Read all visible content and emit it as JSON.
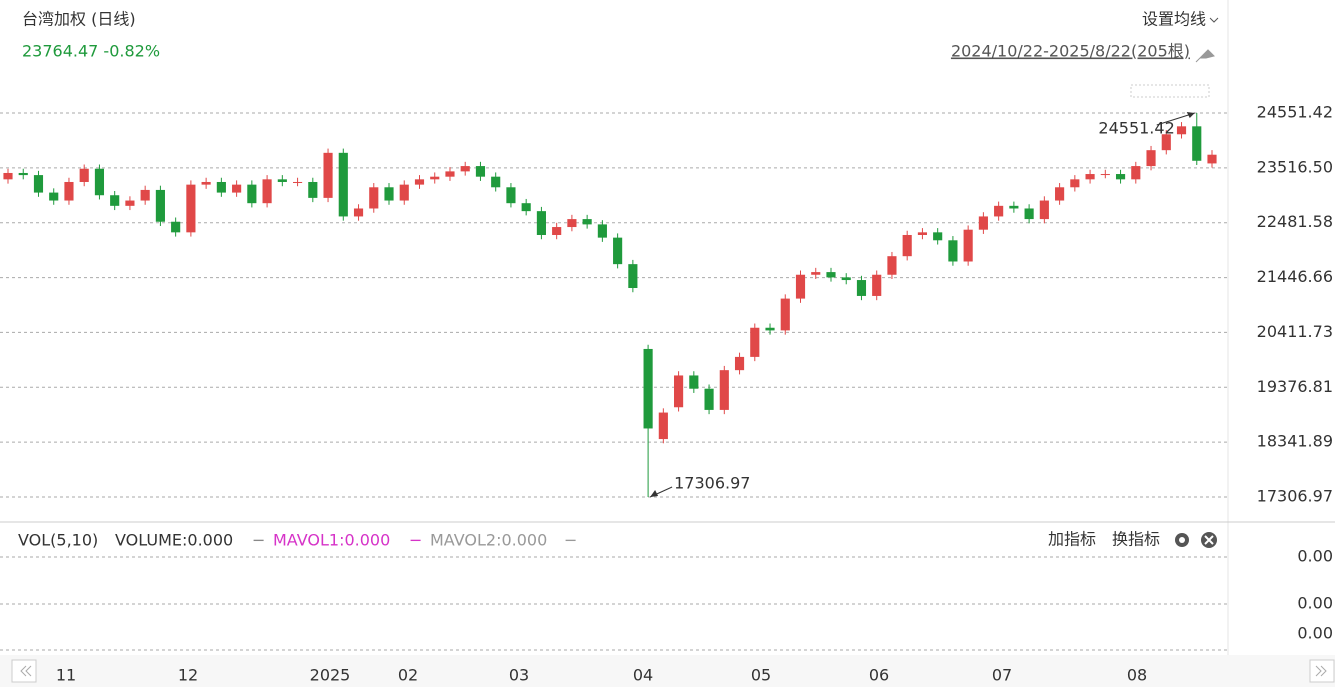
{
  "header": {
    "title": "台湾加权 (日线)",
    "quote": "23764.47 -0.82%",
    "ma_button": "设置均线",
    "range": "2024/10/22-2025/8/22(205根)"
  },
  "chart_data": {
    "type": "candlestick",
    "open": [
      23300,
      23420,
      23380,
      23050,
      22900,
      23250,
      23500,
      23000,
      22800,
      22900,
      23100,
      22500,
      22300,
      23200,
      23250,
      23050,
      23200,
      22850,
      23300,
      23250,
      23250,
      22950,
      23800,
      22600,
      22750,
      23150,
      22900,
      23200,
      23300,
      23350,
      23450,
      23550,
      23350,
      23150,
      22850,
      22700,
      22250,
      22400,
      22550,
      22450,
      22200,
      21700,
      20100,
      18400,
      19000,
      19600,
      19350,
      18950,
      19700,
      19950,
      20500,
      20450,
      21050,
      21500,
      21550,
      21450,
      21400,
      21100,
      21500,
      21850,
      22250,
      22300,
      22150,
      21750,
      22350,
      22600,
      22800,
      22750,
      22550,
      22900,
      23150,
      23300,
      23400,
      23400,
      23300,
      23550,
      23850,
      24150,
      24300,
      23600
    ],
    "high": [
      23500,
      23500,
      23460,
      23130,
      23330,
      23580,
      23580,
      23080,
      22980,
      23180,
      23180,
      22580,
      23280,
      23330,
      23330,
      23280,
      23280,
      23380,
      23380,
      23330,
      23330,
      23880,
      23880,
      22830,
      23230,
      23230,
      23280,
      23380,
      23430,
      23530,
      23630,
      23630,
      23430,
      23230,
      22930,
      22780,
      22480,
      22630,
      22630,
      22530,
      22280,
      21780,
      20180,
      18980,
      19680,
      19680,
      19430,
      19780,
      20030,
      20580,
      20580,
      21130,
      21580,
      21630,
      21630,
      21530,
      21480,
      21580,
      21930,
      22330,
      22380,
      22380,
      22230,
      22430,
      22680,
      22880,
      22880,
      22830,
      22980,
      23230,
      23380,
      23480,
      23480,
      23480,
      23630,
      23930,
      24230,
      24380,
      24551.42,
      23850
    ],
    "low": [
      23220,
      23300,
      22970,
      22820,
      22820,
      23170,
      22920,
      22720,
      22720,
      22820,
      22420,
      22220,
      22220,
      23120,
      22970,
      22970,
      22770,
      22770,
      23170,
      23170,
      22870,
      22870,
      22520,
      22520,
      22670,
      22820,
      22820,
      23120,
      23220,
      23270,
      23370,
      23270,
      23070,
      22770,
      22620,
      22170,
      22170,
      22320,
      22370,
      22120,
      21620,
      21170,
      17306.97,
      18320,
      18920,
      19270,
      18870,
      18870,
      19620,
      19870,
      20370,
      20370,
      20970,
      21420,
      21370,
      21320,
      21020,
      21020,
      21420,
      21770,
      22170,
      22070,
      21670,
      21670,
      22270,
      22520,
      22670,
      22470,
      22470,
      22820,
      23070,
      23220,
      23320,
      23220,
      23220,
      23470,
      23770,
      24070,
      23570,
      23520
    ],
    "close": [
      23420,
      23380,
      23050,
      22900,
      23250,
      23500,
      23000,
      22800,
      22900,
      23100,
      22500,
      22300,
      23200,
      23250,
      23050,
      23200,
      22850,
      23300,
      23250,
      23250,
      22950,
      23800,
      22600,
      22750,
      23150,
      22900,
      23200,
      23300,
      23350,
      23450,
      23550,
      23350,
      23150,
      22850,
      22700,
      22250,
      22400,
      22550,
      22450,
      22200,
      21700,
      21250,
      18600,
      18900,
      19600,
      19350,
      18950,
      19700,
      19950,
      20500,
      20450,
      21050,
      21500,
      21550,
      21450,
      21400,
      21100,
      21500,
      21850,
      22250,
      22300,
      22150,
      21750,
      22350,
      22600,
      22800,
      22750,
      22550,
      22900,
      23150,
      23300,
      23400,
      23400,
      23300,
      23550,
      23850,
      24150,
      24300,
      23650,
      23764.47
    ],
    "up_color": "#e04848",
    "down_color": "#1f9a3c",
    "ylim": [
      17306.97,
      24551.42
    ],
    "yticks": [
      24551.42,
      {
        "value": 23516.5,
        "label": "23516.50"
      },
      22481.58,
      21446.66,
      20411.73,
      19376.81,
      18341.89,
      17306.97
    ],
    "x_labels": [
      "11",
      "12",
      "2025",
      "02",
      "03",
      "04",
      "05",
      "06",
      "07",
      "08"
    ]
  },
  "volume": {
    "legend": [
      "VOL(5,10)",
      "VOLUME:0.000",
      "MAVOL1:0.000",
      "MAVOL2:0.000"
    ],
    "axis_labels": [
      "0.00",
      "0.00",
      "0.00"
    ],
    "buttons": [
      "加指标",
      "换指标"
    ]
  }
}
